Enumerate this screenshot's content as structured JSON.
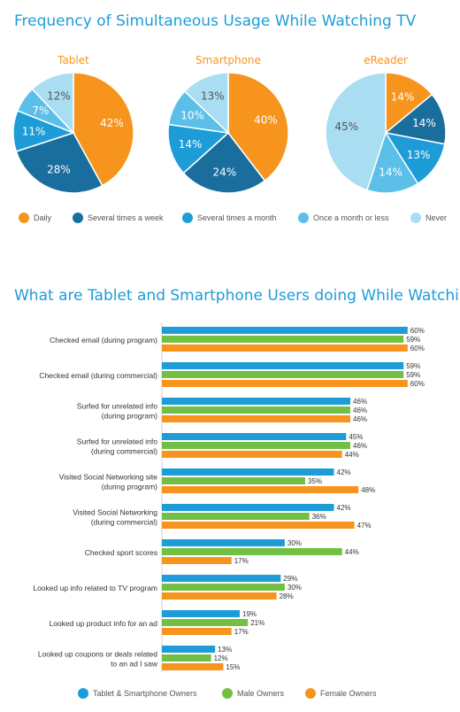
{
  "colors": {
    "daily": "#f7941d",
    "several_week": "#1a6e9e",
    "several_month": "#1e9cd7",
    "once_month": "#5bbfe9",
    "never": "#a8ddf2",
    "tablet_smartphone": "#1e9cd7",
    "male": "#72bf44",
    "female": "#f7941d",
    "title": "#1e9cd7",
    "chart_title": "#f7941d"
  },
  "chart_data": [
    {
      "type": "pie",
      "title": "Frequency of Simultaneous Usage While Watching TV",
      "legend_placement": "bottom",
      "categories": [
        "Daily",
        "Several times a week",
        "Several times a month",
        "Once a month or less",
        "Never"
      ],
      "charts": [
        {
          "name": "Tablet",
          "values": [
            42,
            28,
            11,
            7,
            12
          ],
          "labels": [
            "42%",
            "28%",
            "11%",
            "7%",
            "12%"
          ]
        },
        {
          "name": "Smartphone",
          "values": [
            40,
            24,
            14,
            10,
            13
          ],
          "labels": [
            "40%",
            "24%",
            "14%",
            "10%",
            "13%"
          ]
        },
        {
          "name": "eReader",
          "values": [
            14,
            14,
            13,
            14,
            45
          ],
          "labels": [
            "14%",
            "14%",
            "13%",
            "14%",
            "45%"
          ]
        }
      ]
    },
    {
      "type": "bar",
      "orientation": "horizontal",
      "title": "What are Tablet and Smartphone Users doing While Watching TV?",
      "grid": false,
      "legend_placement": "bottom",
      "xlim": [
        0,
        60
      ],
      "categories": [
        [
          "Checked email (during program)"
        ],
        [
          "Checked email (during commercial)"
        ],
        [
          "Surfed for unrelated info",
          "(during program)"
        ],
        [
          "Surfed for unrelated info",
          "(during commercial)"
        ],
        [
          "Visited Social Networking site",
          "(during program)"
        ],
        [
          "Visited Social Networking",
          "(during commercial)"
        ],
        [
          "Checked sport scores"
        ],
        [
          "Looked up info related to TV program"
        ],
        [
          "Looked up product info for an ad"
        ],
        [
          "Looked up coupons or deals related",
          "to an ad I saw"
        ]
      ],
      "series": [
        {
          "name": "Tablet & Smartphone Owners",
          "values": [
            60,
            59,
            46,
            45,
            42,
            42,
            30,
            29,
            19,
            13
          ]
        },
        {
          "name": "Male Owners",
          "values": [
            59,
            59,
            46,
            46,
            35,
            36,
            44,
            30,
            21,
            12
          ]
        },
        {
          "name": "Female Owners",
          "values": [
            60,
            60,
            46,
            44,
            48,
            47,
            17,
            28,
            17,
            15
          ]
        }
      ]
    }
  ]
}
